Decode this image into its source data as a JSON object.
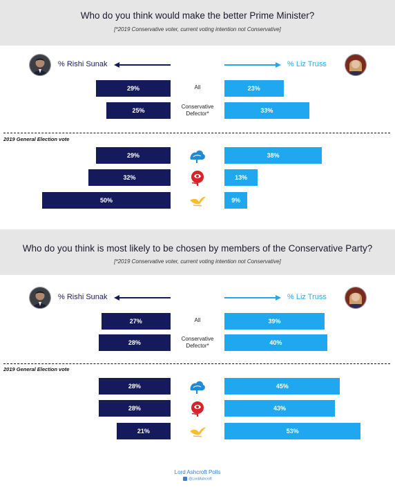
{
  "colors": {
    "sunak": "#141a5c",
    "truss": "#1fa8ef",
    "header_bg": "#e6e6e6"
  },
  "chart_data": [
    {
      "type": "bar",
      "title": "Who do you think would make the better Prime Minister?",
      "subtitle": "[*2019 Conservative voter, current voting intention not Conservative]",
      "series": [
        {
          "name": "% Rishi Sunak",
          "values": [
            29,
            25,
            29,
            32,
            50
          ]
        },
        {
          "name": "% Liz Truss",
          "values": [
            23,
            33,
            38,
            13,
            9
          ]
        }
      ],
      "categories": [
        "All",
        "Conservative Defector*",
        "Conservative",
        "Labour",
        "Liberal Democrat"
      ],
      "category_labels": [
        "All",
        "Conservative",
        "Defector*"
      ],
      "group_label": "2019 General Election vote",
      "value_labels_sunak": [
        "29%",
        "25%",
        "29%",
        "32%",
        "50%"
      ],
      "value_labels_truss": [
        "23%",
        "33%",
        "38%",
        "13%",
        "9%"
      ],
      "icons": [
        "conservative-tree-icon",
        "labour-rose-icon",
        "libdem-bird-icon"
      ]
    },
    {
      "type": "bar",
      "title": "Who do you think is most likely to be chosen by members of the Conservative Party?",
      "subtitle": "[*2019 Conservative voter, current voting intention not Conservative]",
      "series": [
        {
          "name": "% Rishi Sunak",
          "values": [
            27,
            28,
            28,
            28,
            21
          ]
        },
        {
          "name": "% Liz Truss",
          "values": [
            39,
            40,
            45,
            43,
            53
          ]
        }
      ],
      "categories": [
        "All",
        "Conservative Defector*",
        "Conservative",
        "Labour",
        "Liberal Democrat"
      ],
      "category_labels": [
        "All",
        "Conservative",
        "Defector*"
      ],
      "group_label": "2019 General Election vote",
      "value_labels_sunak": [
        "27%",
        "28%",
        "28%",
        "28%",
        "21%"
      ],
      "value_labels_truss": [
        "39%",
        "40%",
        "45%",
        "43%",
        "53%"
      ],
      "icons": [
        "conservative-tree-icon",
        "labour-rose-icon",
        "libdem-bird-icon"
      ]
    }
  ],
  "footer": {
    "brand": "Lord Ashcroft Polls",
    "handle": "@LordAshcroft"
  }
}
